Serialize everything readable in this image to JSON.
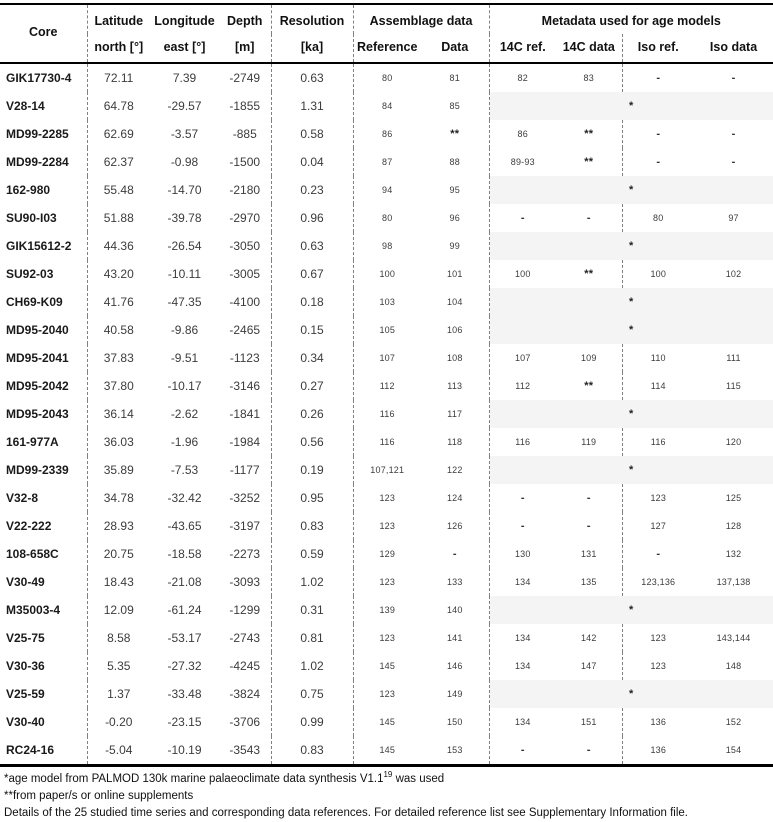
{
  "colors": {
    "shaded_cell": "#f4f4f4",
    "border": "#000000",
    "dashed_line": "#808080"
  },
  "table": {
    "header": {
      "core": "Core",
      "latitude_l1": "Latitude",
      "latitude_l2": "north [°]",
      "longitude_l1": "Longitude",
      "longitude_l2": "east [°]",
      "depth_l1": "Depth",
      "depth_l2": "[m]",
      "resolution_l1": "Resolution",
      "resolution_l2": "[ka]",
      "assemblage_group": "Assemblage data",
      "metadata_group": "Metadata used for age models",
      "reference": "Reference",
      "data": "Data",
      "c14_ref": "14C ref.",
      "c14_data": "14C data",
      "iso_ref": "Iso ref.",
      "iso_data": "Iso data"
    },
    "rows": [
      {
        "core": "GIK17730-4",
        "lat": "72.11",
        "lon": "7.39",
        "depth": "-2749",
        "res": "0.63",
        "ref": "80",
        "data": "81",
        "c14_ref": "82",
        "c14_data": "83",
        "iso_ref": "-",
        "iso_data": "-"
      },
      {
        "core": "V28-14",
        "lat": "64.78",
        "lon": "-29.57",
        "depth": "-1855",
        "res": "1.31",
        "ref": "84",
        "data": "85",
        "merged": "*"
      },
      {
        "core": "MD99-2285",
        "lat": "62.69",
        "lon": "-3.57",
        "depth": "-885",
        "res": "0.58",
        "ref": "86",
        "data": "**",
        "c14_ref": "86",
        "c14_data": "**",
        "iso_ref": "-",
        "iso_data": "-"
      },
      {
        "core": "MD99-2284",
        "lat": "62.37",
        "lon": "-0.98",
        "depth": "-1500",
        "res": "0.04",
        "ref": "87",
        "data": "88",
        "c14_ref": "89-93",
        "c14_data": "**",
        "iso_ref": "-",
        "iso_data": "-"
      },
      {
        "core": "162-980",
        "lat": "55.48",
        "lon": "-14.70",
        "depth": "-2180",
        "res": "0.23",
        "ref": "94",
        "data": "95",
        "merged": "*"
      },
      {
        "core": "SU90-I03",
        "lat": "51.88",
        "lon": "-39.78",
        "depth": "-2970",
        "res": "0.96",
        "ref": "80",
        "data": "96",
        "c14_ref": "-",
        "c14_data": "-",
        "iso_ref": "80",
        "iso_data": "97"
      },
      {
        "core": "GIK15612-2",
        "lat": "44.36",
        "lon": "-26.54",
        "depth": "-3050",
        "res": "0.63",
        "ref": "98",
        "data": "99",
        "merged": "*"
      },
      {
        "core": "SU92-03",
        "lat": "43.20",
        "lon": "-10.11",
        "depth": "-3005",
        "res": "0.67",
        "ref": "100",
        "data": "101",
        "c14_ref": "100",
        "c14_data": "**",
        "iso_ref": "100",
        "iso_data": "102"
      },
      {
        "core": "CH69-K09",
        "lat": "41.76",
        "lon": "-47.35",
        "depth": "-4100",
        "res": "0.18",
        "ref": "103",
        "data": "104",
        "merged": "*"
      },
      {
        "core": "MD95-2040",
        "lat": "40.58",
        "lon": "-9.86",
        "depth": "-2465",
        "res": "0.15",
        "ref": "105",
        "data": "106",
        "merged": "*"
      },
      {
        "core": "MD95-2041",
        "lat": "37.83",
        "lon": "-9.51",
        "depth": "-1123",
        "res": "0.34",
        "ref": "107",
        "data": "108",
        "c14_ref": "107",
        "c14_data": "109",
        "iso_ref": "110",
        "iso_data": "111"
      },
      {
        "core": "MD95-2042",
        "lat": "37.80",
        "lon": "-10.17",
        "depth": "-3146",
        "res": "0.27",
        "ref": "112",
        "data": "113",
        "c14_ref": "112",
        "c14_data": "**",
        "iso_ref": "114",
        "iso_data": "115"
      },
      {
        "core": "MD95-2043",
        "lat": "36.14",
        "lon": "-2.62",
        "depth": "-1841",
        "res": "0.26",
        "ref": "116",
        "data": "117",
        "merged": "*"
      },
      {
        "core": "161-977A",
        "lat": "36.03",
        "lon": "-1.96",
        "depth": "-1984",
        "res": "0.56",
        "ref": "116",
        "data": "118",
        "c14_ref": "116",
        "c14_data": "119",
        "iso_ref": "116",
        "iso_data": "120"
      },
      {
        "core": "MD99-2339",
        "lat": "35.89",
        "lon": "-7.53",
        "depth": "-1177",
        "res": "0.19",
        "ref": "107,121",
        "data": "122",
        "merged": "*"
      },
      {
        "core": "V32-8",
        "lat": "34.78",
        "lon": "-32.42",
        "depth": "-3252",
        "res": "0.95",
        "ref": "123",
        "data": "124",
        "c14_ref": "-",
        "c14_data": "-",
        "iso_ref": "123",
        "iso_data": "125"
      },
      {
        "core": "V22-222",
        "lat": "28.93",
        "lon": "-43.65",
        "depth": "-3197",
        "res": "0.83",
        "ref": "123",
        "data": "126",
        "c14_ref": "-",
        "c14_data": "-",
        "iso_ref": "127",
        "iso_data": "128"
      },
      {
        "core": "108-658C",
        "lat": "20.75",
        "lon": "-18.58",
        "depth": "-2273",
        "res": "0.59",
        "ref": "129",
        "data": "-",
        "c14_ref": "130",
        "c14_data": "131",
        "iso_ref": "-",
        "iso_data": "132"
      },
      {
        "core": "V30-49",
        "lat": "18.43",
        "lon": "-21.08",
        "depth": "-3093",
        "res": "1.02",
        "ref": "123",
        "data": "133",
        "c14_ref": "134",
        "c14_data": "135",
        "iso_ref": "123,136",
        "iso_data": "137,138"
      },
      {
        "core": "M35003-4",
        "lat": "12.09",
        "lon": "-61.24",
        "depth": "-1299",
        "res": "0.31",
        "ref": "139",
        "data": "140",
        "merged": "*"
      },
      {
        "core": "V25-75",
        "lat": "8.58",
        "lon": "-53.17",
        "depth": "-2743",
        "res": "0.81",
        "ref": "123",
        "data": "141",
        "c14_ref": "134",
        "c14_data": "142",
        "iso_ref": "123",
        "iso_data": "143,144"
      },
      {
        "core": "V30-36",
        "lat": "5.35",
        "lon": "-27.32",
        "depth": "-4245",
        "res": "1.02",
        "ref": "145",
        "data": "146",
        "c14_ref": "134",
        "c14_data": "147",
        "iso_ref": "123",
        "iso_data": "148"
      },
      {
        "core": "V25-59",
        "lat": "1.37",
        "lon": "-33.48",
        "depth": "-3824",
        "res": "0.75",
        "ref": "123",
        "data": "149",
        "merged": "*"
      },
      {
        "core": "V30-40",
        "lat": "-0.20",
        "lon": "-23.15",
        "depth": "-3706",
        "res": "0.99",
        "ref": "145",
        "data": "150",
        "c14_ref": "134",
        "c14_data": "151",
        "iso_ref": "136",
        "iso_data": "152"
      },
      {
        "core": "RC24-16",
        "lat": "-5.04",
        "lon": "-10.19",
        "depth": "-3543",
        "res": "0.83",
        "ref": "145",
        "data": "153",
        "c14_ref": "-",
        "c14_data": "-",
        "iso_ref": "136",
        "iso_data": "154"
      }
    ]
  },
  "footnotes": {
    "line1_pre": "*age model from PALMOD 130k marine palaeoclimate data synthesis V1.1",
    "line1_sup": "19",
    "line1_post": " was used",
    "line2": "**from paper/s or online supplements",
    "line3": "Details of the 25 studied time series and corresponding data references. For detailed reference list see Supplementary Information file."
  }
}
